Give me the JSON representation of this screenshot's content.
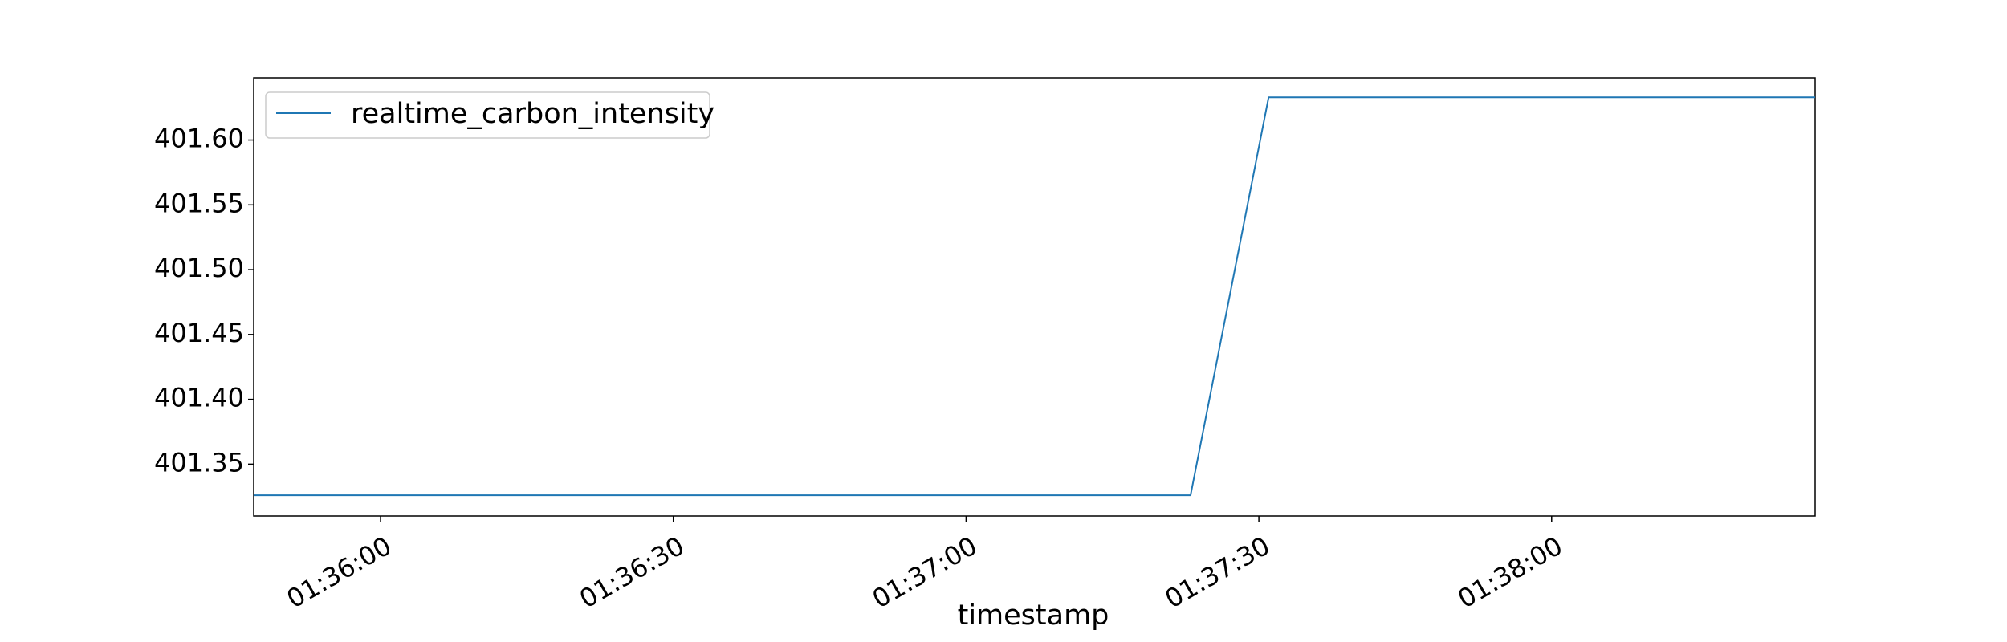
{
  "chart_data": {
    "type": "line",
    "title": "",
    "xlabel": "timestamp",
    "ylabel": "",
    "x_ticks": [
      "01:36:00",
      "01:36:30",
      "01:37:00",
      "01:37:30",
      "01:38:00"
    ],
    "y_ticks": [
      "401.35",
      "401.40",
      "401.45",
      "401.50",
      "401.55",
      "401.60"
    ],
    "xlim": [
      "01:35:47",
      "01:38:27"
    ],
    "ylim": [
      401.31,
      401.648
    ],
    "grid": false,
    "legend_position": "top-left",
    "series": [
      {
        "name": "realtime_carbon_intensity",
        "color": "#1f77b4",
        "x": [
          "01:35:47",
          "01:37:23",
          "01:37:31",
          "01:38:27"
        ],
        "y": [
          401.326,
          401.326,
          401.633,
          401.633
        ]
      }
    ]
  }
}
